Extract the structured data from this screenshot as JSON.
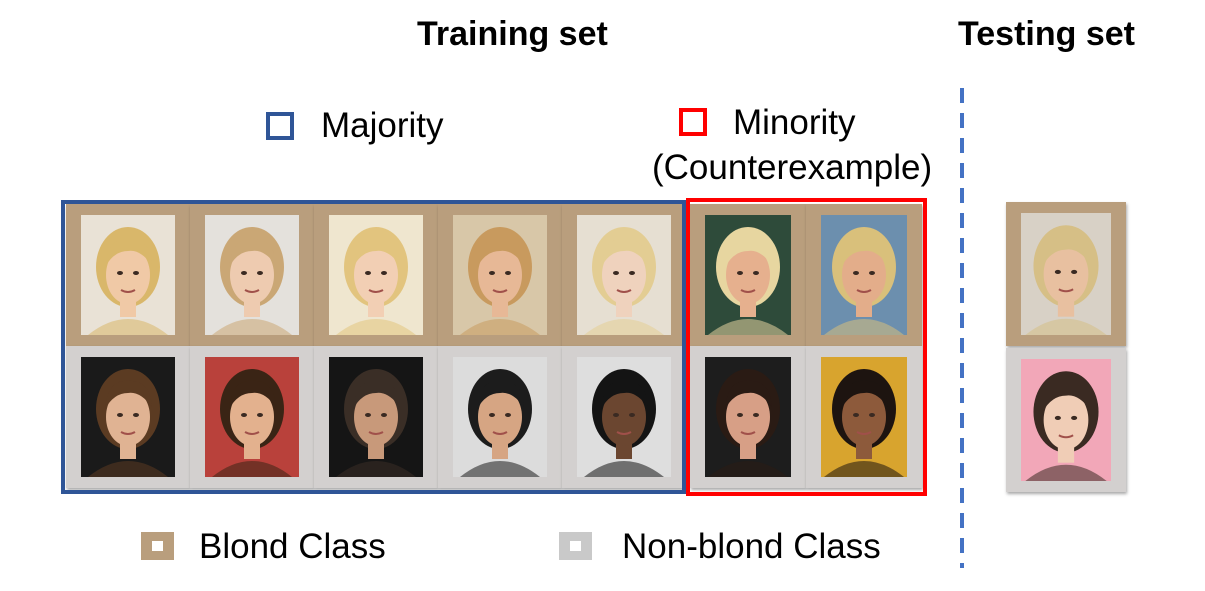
{
  "titles": {
    "training": "Training set",
    "testing": "Testing set"
  },
  "legend": {
    "majority": "Majority",
    "minority": "Minority",
    "minority_note": "(Counterexample)",
    "blond_class": "Blond Class",
    "nonblond_class": "Non-blond Class"
  },
  "colors": {
    "majority_frame": "#2f5597",
    "minority_frame": "#ff0000",
    "blond_tile": "#b99e7d",
    "nonblond_tile": "#d3d0cf",
    "divider": "#4472c4"
  },
  "images": {
    "majority_blond": [
      {
        "name": "face-blond-woman-1",
        "bg": "#e9e2d6",
        "skin": "#f0c9a6",
        "hair": "#d9b76a"
      },
      {
        "name": "face-blond-woman-2",
        "bg": "#e4e1dc",
        "skin": "#eecbb0",
        "hair": "#caa775"
      },
      {
        "name": "face-blond-woman-3",
        "bg": "#efe6cf",
        "skin": "#f2cfb4",
        "hair": "#e2c47e"
      },
      {
        "name": "face-blond-woman-4",
        "bg": "#d8c7a8",
        "skin": "#e7b896",
        "hair": "#c89a5e"
      },
      {
        "name": "face-blond-woman-5",
        "bg": "#e6dfd2",
        "skin": "#efd2bd",
        "hair": "#e3cd93"
      }
    ],
    "majority_nonblond": [
      {
        "name": "face-dark-hair-man-1",
        "bg": "#1a1a1a",
        "skin": "#e0b393",
        "hair": "#5b3b22"
      },
      {
        "name": "face-dark-hair-man-2",
        "bg": "#b9413b",
        "skin": "#e3b18e",
        "hair": "#3a2415"
      },
      {
        "name": "face-dark-hair-man-3",
        "bg": "#151515",
        "skin": "#c8997a",
        "hair": "#3a2e26"
      },
      {
        "name": "face-dark-hair-man-4",
        "bg": "#dcdcdc",
        "skin": "#d6a583",
        "hair": "#1c1c1c"
      },
      {
        "name": "face-dark-hair-man-5",
        "bg": "#dedede",
        "skin": "#6b4630",
        "hair": "#141414"
      }
    ],
    "minority_blond": [
      {
        "name": "face-blond-man-1",
        "bg": "#2e4b3a",
        "skin": "#e6b08e",
        "hair": "#e7d6a0"
      },
      {
        "name": "face-blond-man-2",
        "bg": "#6c8fae",
        "skin": "#e3ad8a",
        "hair": "#d9c07b"
      }
    ],
    "minority_nonblond": [
      {
        "name": "face-dark-hair-woman-1",
        "bg": "#1d1d1d",
        "skin": "#d79f86",
        "hair": "#2a1b14"
      },
      {
        "name": "face-dark-hair-woman-2",
        "bg": "#d8a42e",
        "skin": "#8d5a3b",
        "hair": "#1d1410"
      }
    ],
    "testing": [
      {
        "name": "face-test-blond-man",
        "bg": "#d8d1c6",
        "skin": "#e8c0a0",
        "hair": "#d6bf86"
      },
      {
        "name": "face-test-dark-hair-woman",
        "bg": "#f2a7b8",
        "skin": "#f0cdb6",
        "hair": "#3a2a22"
      }
    ]
  }
}
